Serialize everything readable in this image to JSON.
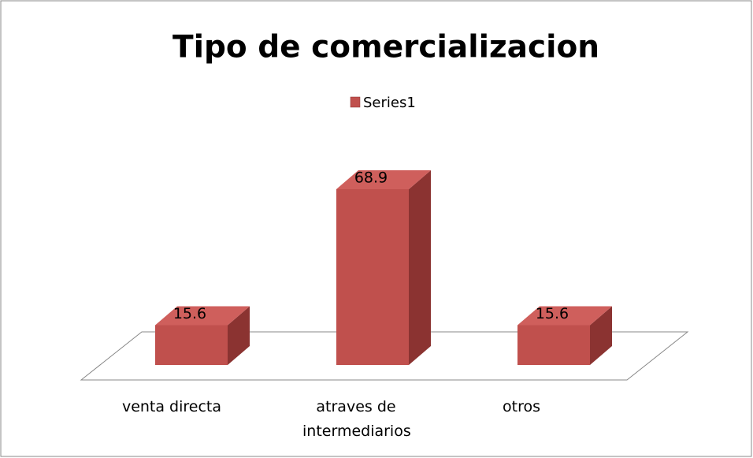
{
  "chart_data": {
    "type": "bar3d",
    "title": "Tipo de comercializacion",
    "categories": [
      "venta directa",
      "atraves de intermediarios",
      "otros"
    ],
    "series": [
      {
        "name": "Series1",
        "color": "#c0504d",
        "values": [
          15.6,
          68.9,
          15.6
        ]
      }
    ],
    "legend": "top"
  }
}
